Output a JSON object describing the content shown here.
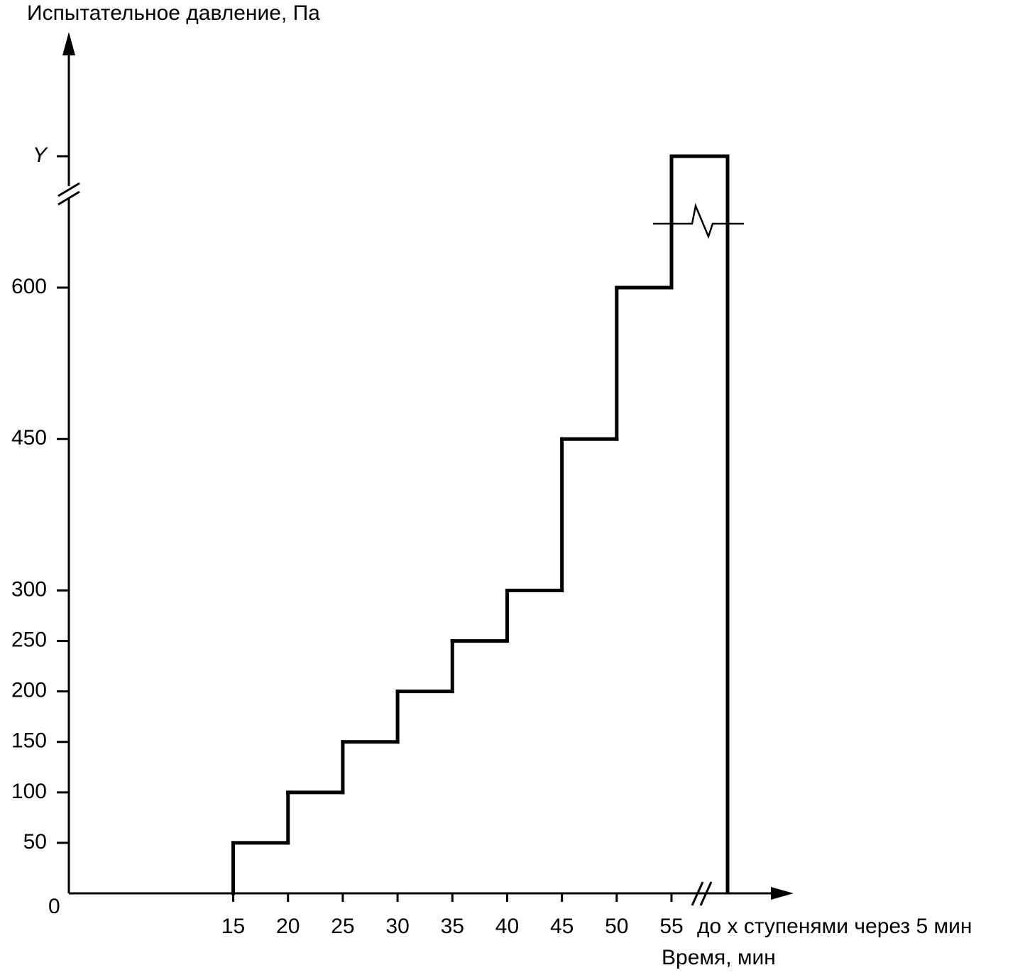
{
  "chart_data": {
    "type": "step",
    "y_label": "Испытательное давление, Па",
    "x_label": "Время, мин",
    "x": [
      15,
      20,
      25,
      30,
      35,
      40,
      45,
      50
    ],
    "values": [
      50,
      100,
      150,
      200,
      250,
      300,
      450,
      600
    ],
    "color": "#000000",
    "xlim": [
      0,
      55
    ],
    "xticks": [
      15,
      20,
      25,
      30,
      35,
      40,
      45,
      50,
      55
    ],
    "ylim": [
      0,
      600
    ],
    "yticks": [
      50,
      100,
      150,
      200,
      250,
      300,
      450,
      600
    ],
    "origin_label": "0",
    "y_top_label": "Y",
    "x_end_label": "до x ступенями через 5 мин"
  }
}
